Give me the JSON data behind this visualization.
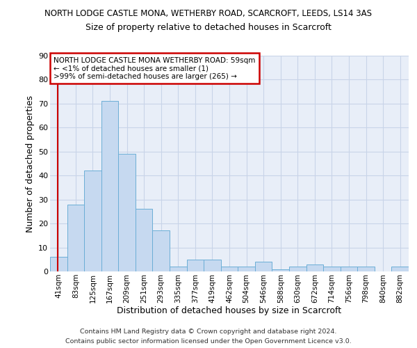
{
  "title1": "NORTH LODGE CASTLE MONA, WETHERBY ROAD, SCARCROFT, LEEDS, LS14 3AS",
  "title2": "Size of property relative to detached houses in Scarcroft",
  "xlabel": "Distribution of detached houses by size in Scarcroft",
  "ylabel": "Number of detached properties",
  "categories": [
    "41sqm",
    "83sqm",
    "125sqm",
    "167sqm",
    "209sqm",
    "251sqm",
    "293sqm",
    "335sqm",
    "377sqm",
    "419sqm",
    "462sqm",
    "504sqm",
    "546sqm",
    "588sqm",
    "630sqm",
    "672sqm",
    "714sqm",
    "756sqm",
    "798sqm",
    "840sqm",
    "882sqm"
  ],
  "values": [
    6,
    28,
    42,
    71,
    49,
    26,
    17,
    2,
    5,
    5,
    2,
    2,
    4,
    1,
    2,
    3,
    2,
    2,
    2,
    0,
    2
  ],
  "bar_color": "#c6d9f0",
  "bar_edge_color": "#6baed6",
  "annotation_line1": "NORTH LODGE CASTLE MONA WETHERBY ROAD: 59sqm",
  "annotation_line2": "← <1% of detached houses are smaller (1)",
  "annotation_line3": ">99% of semi-detached houses are larger (265) →",
  "ylim": [
    0,
    90
  ],
  "yticks": [
    0,
    10,
    20,
    30,
    40,
    50,
    60,
    70,
    80,
    90
  ],
  "footnote1": "Contains HM Land Registry data © Crown copyright and database right 2024.",
  "footnote2": "Contains public sector information licensed under the Open Government Licence v3.0.",
  "bg_color": "#e8eef8",
  "box_edge_color": "#cc0000",
  "red_line_color": "#cc0000",
  "grid_color": "#c8d4e8"
}
